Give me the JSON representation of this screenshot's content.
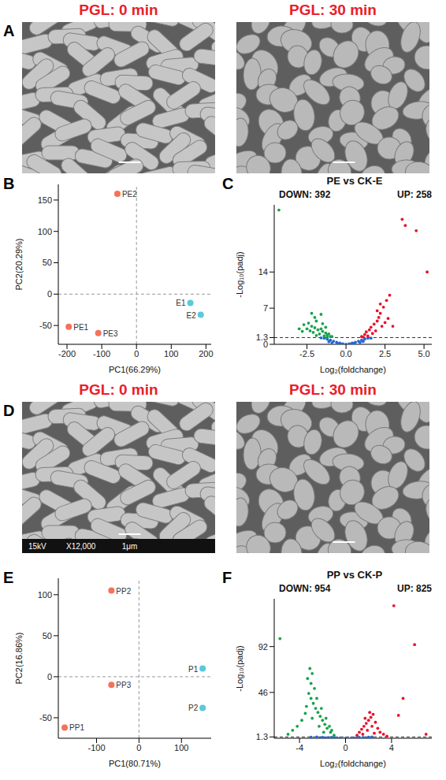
{
  "images": [
    {
      "panel": "A",
      "title": "PGL: 0 min"
    },
    {
      "title": "PGL: 30 min"
    },
    {
      "panel": "D",
      "title": "PGL: 0 min",
      "info": [
        "15kV",
        "X12,000",
        "1μm"
      ]
    },
    {
      "title": "PGL: 30 min"
    }
  ],
  "chart_data": [
    {
      "panel": "B",
      "type": "scatter",
      "xlabel": "PC1(66.29%)",
      "ylabel": "PC2(20.29%)",
      "xlim": [
        -225,
        215
      ],
      "xticks": [
        -200,
        -100,
        0,
        100,
        200
      ],
      "ylim": [
        -80,
        175
      ],
      "yticks": [
        -50,
        0,
        50,
        100,
        150
      ],
      "reference_lines": {
        "x": 0,
        "y": 0
      },
      "series": [
        {
          "color": "#f4725a",
          "x": [
            -195,
            -55,
            -110
          ],
          "values": [
            -52,
            160,
            -62
          ],
          "labels": [
            "PE1",
            "PE2",
            "PE3"
          ]
        },
        {
          "color": "#5cc8da",
          "x": [
            155,
            185
          ],
          "values": [
            -14,
            -33
          ],
          "labels": [
            "E1",
            "E2"
          ]
        }
      ]
    },
    {
      "panel": "C",
      "type": "scatter",
      "title": "PE vs CK-E",
      "annotations": [
        "DOWN: 392",
        "UP: 258"
      ],
      "xlabel": "Log₂(foldchange)",
      "ylabel": "-Log₁₀(padj)",
      "xlim": [
        -4.6,
        5.5
      ],
      "xticks": [
        -2.5,
        {
          "value": 0,
          "label": "0.0"
        },
        2.5,
        {
          "value": 5,
          "label": "5.0"
        }
      ],
      "ylim": [
        0,
        27
      ],
      "yticks": [
        0,
        1.3,
        7,
        14
      ],
      "reference_lines": {
        "y": 1.3
      },
      "series": [
        {
          "color": "#2166d6",
          "x": [
            -1.6,
            -1.4,
            -1.2,
            -1.1,
            -1.0,
            -0.9,
            -0.8,
            -0.6,
            -0.5,
            -0.4,
            -0.3,
            -0.2,
            0,
            0.2,
            0.3,
            0.4,
            0.5,
            0.6,
            0.8,
            0.9,
            1.0,
            1.1,
            1.2,
            1.4,
            1.6
          ],
          "values": [
            1.25,
            1.2,
            1.0,
            0.5,
            0.8,
            0.3,
            0.6,
            0.4,
            0.1,
            0.25,
            0.05,
            0.1,
            0.02,
            0.1,
            0.05,
            0.25,
            0.15,
            0.4,
            0.6,
            0.35,
            0.8,
            0.55,
            1.0,
            1.2,
            1.2
          ]
        },
        {
          "color": "#18a34a",
          "x": [
            -4.3,
            -3.0,
            -2.8,
            -2.7,
            -2.5,
            -2.4,
            -2.3,
            -2.2,
            -2.2,
            -2.1,
            -2.0,
            -2.0,
            -1.9,
            -1.9,
            -1.8,
            -1.7,
            -1.6,
            -1.6,
            -1.5,
            -1.5,
            -1.4,
            -1.3,
            -1.3,
            -1.2,
            -1.2,
            -1.1,
            -1.0,
            -0.9
          ],
          "values": [
            26.0,
            3.0,
            2.5,
            3.8,
            3.0,
            4.1,
            2.6,
            3.5,
            6.0,
            2.3,
            3.2,
            5.2,
            1.7,
            4.5,
            2.8,
            2.0,
            3.0,
            5.8,
            2.5,
            4.0,
            1.6,
            2.2,
            3.3,
            1.8,
            1.4,
            2.0,
            1.5,
            1.5
          ]
        },
        {
          "color": "#e8112d",
          "x": [
            1.0,
            1.1,
            1.2,
            1.3,
            1.4,
            1.5,
            1.6,
            1.7,
            1.8,
            1.9,
            2.0,
            2.0,
            2.1,
            2.2,
            2.2,
            2.3,
            2.4,
            2.5,
            2.6,
            2.7,
            2.8,
            3.0,
            3.6,
            3.8,
            4.5,
            5.2
          ],
          "values": [
            1.5,
            1.4,
            1.9,
            2.4,
            1.6,
            2.8,
            3.3,
            2.1,
            3.9,
            2.6,
            4.5,
            6.5,
            5.2,
            6.0,
            7.8,
            3.5,
            7.2,
            4.2,
            8.5,
            5.0,
            9.5,
            3.5,
            24.2,
            23.0,
            22.0,
            14.0
          ]
        }
      ]
    },
    {
      "panel": "E",
      "type": "scatter",
      "xlabel": "PC1(80.71%)",
      "ylabel": "PC2(16.86%)",
      "xlim": [
        -190,
        170
      ],
      "xticks": [
        -100,
        0,
        100
      ],
      "ylim": [
        -75,
        120
      ],
      "yticks": [
        -50,
        0,
        50,
        100
      ],
      "reference_lines": {
        "x": 0,
        "y": 0
      },
      "series": [
        {
          "color": "#f4725a",
          "x": [
            -175,
            -65,
            -65
          ],
          "values": [
            -62,
            105,
            -10
          ],
          "labels": [
            "PP1",
            "PP2",
            "PP3"
          ]
        },
        {
          "color": "#5cc8da",
          "x": [
            150,
            150
          ],
          "values": [
            10,
            -38
          ],
          "labels": [
            "P1",
            "P2"
          ]
        }
      ]
    },
    {
      "panel": "F",
      "type": "scatter",
      "title": "PP vs CK-P",
      "annotations": [
        "DOWN: 954",
        "UP: 825"
      ],
      "xlabel": "Log₂(foldchange)",
      "ylabel": "-Log₁₀(padj)",
      "xlim": [
        -6.2,
        7.5
      ],
      "xticks": [
        -4,
        0,
        4
      ],
      "ylim": [
        0,
        140
      ],
      "yticks": [
        1.3,
        46,
        92
      ],
      "reference_lines": {
        "y": 1.3
      },
      "series": [
        {
          "color": "#2166d6",
          "x": [
            -3.0,
            -2.5,
            -2.2,
            -2.0,
            -1.8,
            -1.5,
            -1.2,
            -1.0,
            -0.8,
            -0.5,
            0,
            0.5,
            0.8,
            1.0,
            1.2,
            1.5,
            1.8,
            2.0,
            2.3
          ],
          "values": [
            1.1,
            1.2,
            0.5,
            0.9,
            0.3,
            0.6,
            0.9,
            0.4,
            0.1,
            0.2,
            0.05,
            0.2,
            0.1,
            0.4,
            0.9,
            0.7,
            0.4,
            1.0,
            1.2
          ]
        },
        {
          "color": "#18a34a",
          "x": [
            -5.7,
            -5.0,
            -4.6,
            -4.2,
            -3.8,
            -3.5,
            -3.4,
            -3.3,
            -3.2,
            -3.1,
            -3.0,
            -3.0,
            -2.9,
            -2.9,
            -2.8,
            -2.7,
            -2.6,
            -2.5,
            -2.4,
            -2.3,
            -2.2,
            -2.1,
            -2.0,
            -1.9,
            -1.8,
            -1.7,
            -1.6,
            -1.4,
            -1.3,
            -1.2,
            -1.0
          ],
          "values": [
            100,
            4,
            8,
            12,
            18,
            25,
            32,
            60,
            45,
            70,
            40,
            55,
            20,
            65,
            35,
            50,
            30,
            40,
            26,
            12,
            22,
            30,
            18,
            6,
            14,
            20,
            10,
            12,
            6,
            8,
            3
          ]
        },
        {
          "color": "#e8112d",
          "x": [
            1.0,
            1.2,
            1.4,
            1.5,
            1.6,
            1.7,
            1.8,
            1.9,
            2.0,
            2.1,
            2.2,
            2.3,
            2.4,
            2.5,
            2.6,
            2.8,
            3.0,
            3.3,
            3.6,
            4.2,
            4.6,
            5.0,
            6.0,
            7.0
          ],
          "values": [
            3,
            6,
            9,
            4,
            12,
            20,
            15,
            8,
            18,
            26,
            21,
            12,
            24,
            5,
            16,
            10,
            6,
            4,
            2,
            133,
            23,
            40,
            94,
            4
          ]
        }
      ]
    }
  ]
}
